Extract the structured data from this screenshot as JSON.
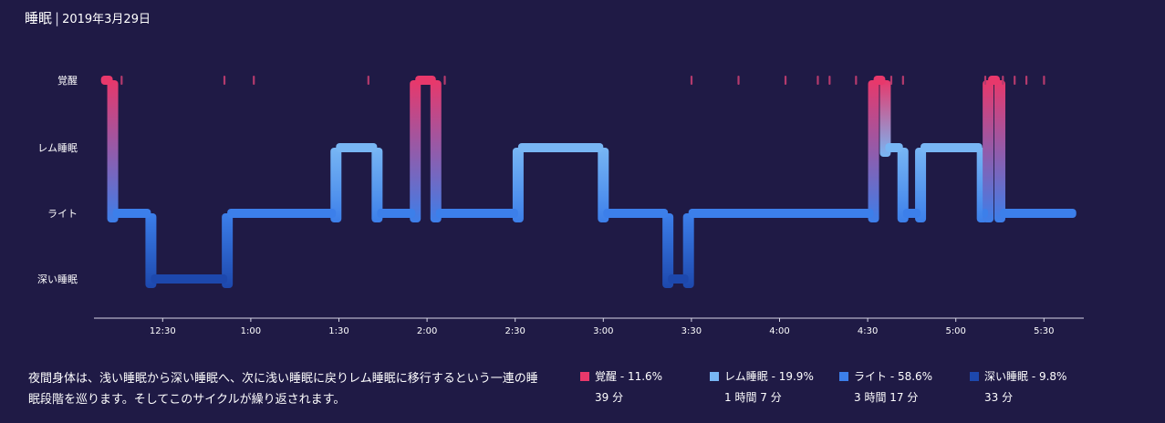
{
  "header": {
    "title": "睡眠",
    "separator": "|",
    "date": "2019年3月29日"
  },
  "chart_data": {
    "type": "step",
    "stages": [
      "覚醒",
      "レム睡眠",
      "ライト",
      "深い睡眠"
    ],
    "x_ticks": [
      "12:30",
      "1:00",
      "1:30",
      "2:00",
      "2:30",
      "3:00",
      "3:30",
      "4:00",
      "4:30",
      "5:00",
      "5:30"
    ],
    "x_range": [
      "12:09",
      "5:50"
    ],
    "grid": false,
    "colors": {
      "覚醒": "#e8386b",
      "レム睡眠": "#78b6f4",
      "ライト": "#3c7fea",
      "深い睡眠": "#1d48ad"
    },
    "segments": [
      {
        "start": "12:09",
        "end": "12:13",
        "stage": "覚醒"
      },
      {
        "start": "12:13",
        "end": "12:26",
        "stage": "ライト"
      },
      {
        "start": "12:26",
        "end": "12:52",
        "stage": "深い睡眠"
      },
      {
        "start": "12:52",
        "end": "1:29",
        "stage": "ライト"
      },
      {
        "start": "1:29",
        "end": "1:43",
        "stage": "レム睡眠"
      },
      {
        "start": "1:43",
        "end": "1:56",
        "stage": "ライト"
      },
      {
        "start": "1:56",
        "end": "2:03",
        "stage": "覚醒"
      },
      {
        "start": "2:03",
        "end": "2:31",
        "stage": "ライト"
      },
      {
        "start": "2:31",
        "end": "3:00",
        "stage": "レム睡眠"
      },
      {
        "start": "3:00",
        "end": "3:22",
        "stage": "ライト"
      },
      {
        "start": "3:22",
        "end": "3:29",
        "stage": "深い睡眠"
      },
      {
        "start": "3:29",
        "end": "4:32",
        "stage": "ライト"
      },
      {
        "start": "4:32",
        "end": "4:36",
        "stage": "覚醒"
      },
      {
        "start": "4:36",
        "end": "4:42",
        "stage": "レム睡眠"
      },
      {
        "start": "4:42",
        "end": "4:48",
        "stage": "ライト"
      },
      {
        "start": "4:48",
        "end": "5:09",
        "stage": "レム睡眠"
      },
      {
        "start": "5:09",
        "end": "5:11",
        "stage": "ライト"
      },
      {
        "start": "5:11",
        "end": "5:15",
        "stage": "覚醒"
      },
      {
        "start": "5:15",
        "end": "5:41",
        "stage": "ライト"
      }
    ],
    "brief_awakenings": [
      "12:16",
      "12:51",
      "1:01",
      "1:40",
      "2:06",
      "3:30",
      "3:46",
      "4:02",
      "4:13",
      "4:17",
      "4:26",
      "4:38",
      "4:42",
      "5:10",
      "5:16",
      "5:20",
      "5:24",
      "5:30"
    ]
  },
  "description": "夜間身体は、浅い睡眠から深い睡眠へ、次に浅い睡眠に戻りレム睡眠に移行するという一連の睡眠段階を巡ります。そしてこのサイクルが繰り返されます。",
  "legend": [
    {
      "label": "覚醒 - 11.6%",
      "duration": "39 分",
      "color": "#e8386b"
    },
    {
      "label": "レム睡眠 - 19.9%",
      "duration": "1 時間 7 分",
      "color": "#78b6f4"
    },
    {
      "label": "ライト - 58.6%",
      "duration": "3 時間 17 分",
      "color": "#3c7fea"
    },
    {
      "label": "深い睡眠 - 9.8%",
      "duration": "33 分",
      "color": "#1d48ad"
    }
  ]
}
